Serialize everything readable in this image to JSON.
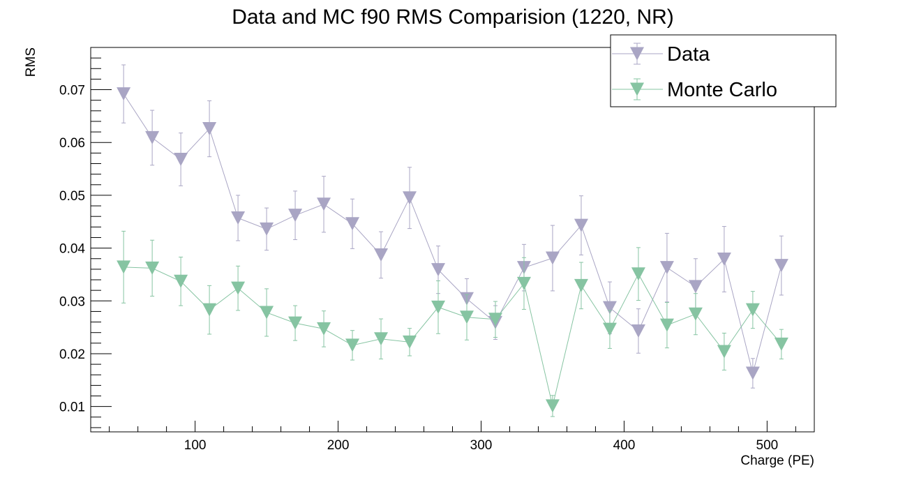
{
  "chart_data": {
    "type": "scatter",
    "title": "Data and MC f90 RMS Comparision (1220, NR)",
    "xlabel": "Charge (PE)",
    "ylabel": "RMS",
    "xlim": [
      27,
      533
    ],
    "ylim": [
      0.0052,
      0.078
    ],
    "x_ticks": [
      100,
      200,
      300,
      400,
      500
    ],
    "x_tick_labels": [
      "100",
      "200",
      "300",
      "400",
      "500"
    ],
    "y_ticks": [
      0.01,
      0.02,
      0.03,
      0.04,
      0.05,
      0.06,
      0.07
    ],
    "y_tick_labels": [
      "0.01",
      "0.02",
      "0.03",
      "0.04",
      "0.05",
      "0.06",
      "0.07"
    ],
    "grid": false,
    "legend_position": "top-right",
    "x": [
      50,
      70,
      90,
      110,
      130,
      150,
      170,
      190,
      210,
      230,
      250,
      270,
      290,
      310,
      330,
      350,
      370,
      390,
      410,
      430,
      450,
      470,
      490,
      510
    ],
    "series": [
      {
        "name": "Data",
        "color": "#a9a5c4",
        "values": [
          0.0692,
          0.0609,
          0.0568,
          0.0626,
          0.0457,
          0.0436,
          0.0462,
          0.0483,
          0.0446,
          0.0387,
          0.0495,
          0.0359,
          0.0304,
          0.0259,
          0.0363,
          0.0381,
          0.0443,
          0.0287,
          0.0243,
          0.0363,
          0.0327,
          0.0379,
          0.0163,
          0.0367
        ],
        "errors": [
          0.0055,
          0.0052,
          0.005,
          0.0053,
          0.0043,
          0.004,
          0.0046,
          0.0053,
          0.0047,
          0.0044,
          0.0058,
          0.0045,
          0.0038,
          0.0032,
          0.0044,
          0.0062,
          0.0056,
          0.0049,
          0.0042,
          0.0065,
          0.0053,
          0.0062,
          0.0028,
          0.0056
        ]
      },
      {
        "name": "Monte Carlo",
        "color": "#86c4a2",
        "values": [
          0.0364,
          0.0362,
          0.0337,
          0.0283,
          0.0324,
          0.0278,
          0.0258,
          0.0247,
          0.0216,
          0.0228,
          0.0222,
          0.0288,
          0.0269,
          0.0265,
          0.0333,
          0.0101,
          0.0329,
          0.0246,
          0.0351,
          0.0254,
          0.0275,
          0.0204,
          0.0283,
          0.0218
        ],
        "errors": [
          0.0068,
          0.0053,
          0.0046,
          0.0046,
          0.0042,
          0.0045,
          0.0033,
          0.0034,
          0.0028,
          0.0038,
          0.0026,
          0.005,
          0.0043,
          0.0034,
          0.0049,
          0.002,
          0.0044,
          0.0036,
          0.005,
          0.0043,
          0.0039,
          0.0035,
          0.0035,
          0.0028
        ]
      }
    ]
  }
}
